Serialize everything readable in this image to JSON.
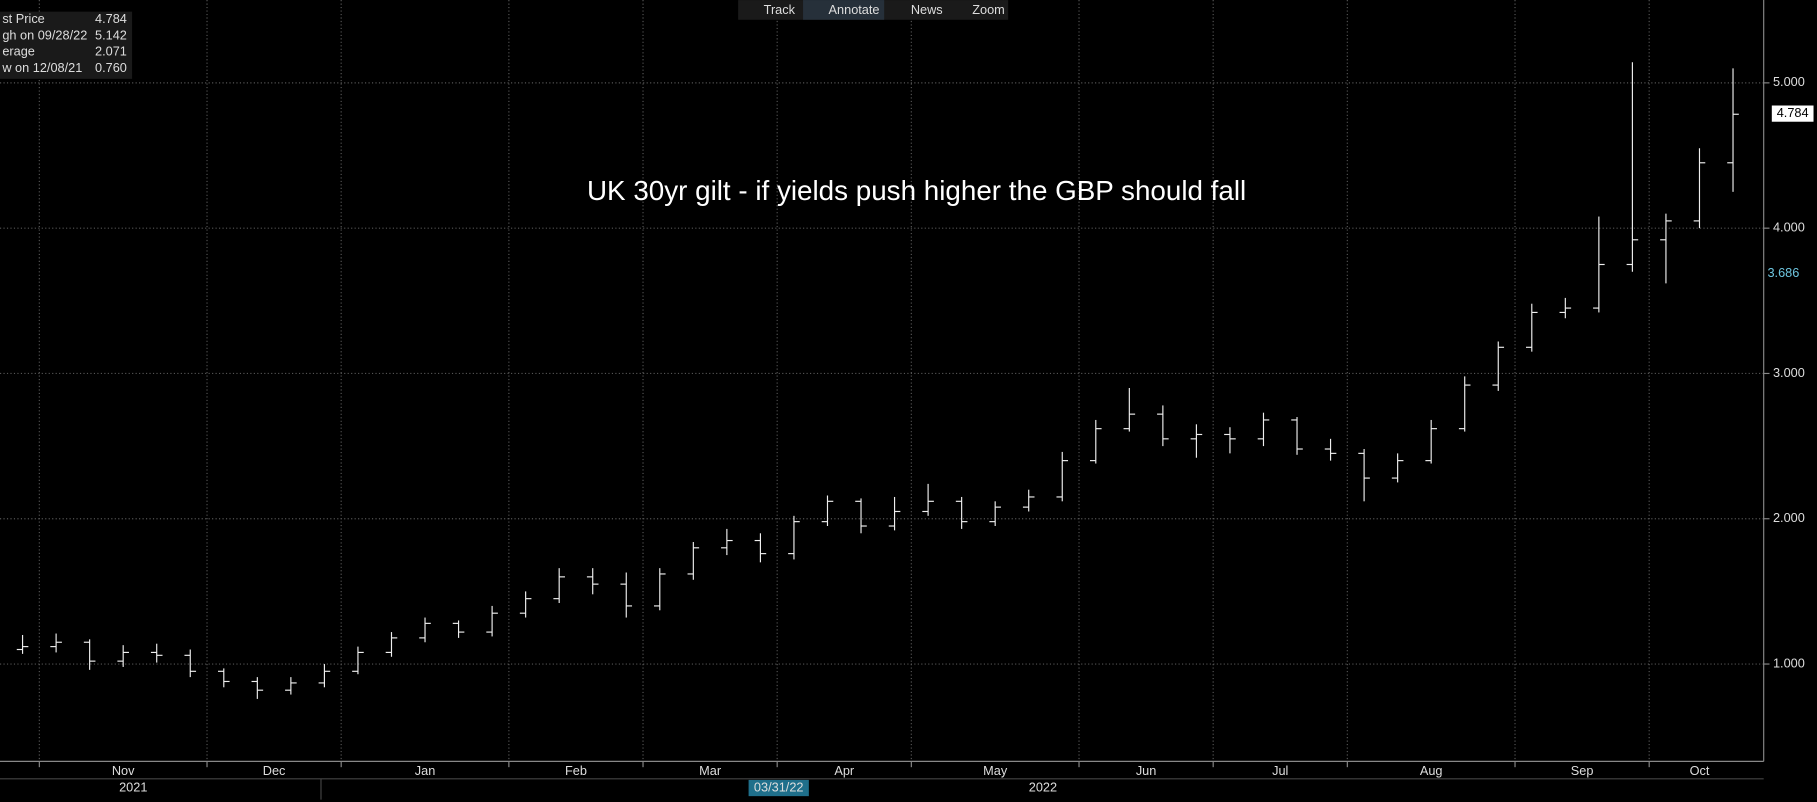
{
  "toolbar": [
    "Track",
    "Annotate",
    "News",
    "Zoom"
  ],
  "legend_box": [
    {
      "label": "st Price",
      "value": "4.784"
    },
    {
      "label": "gh on 09/28/22",
      "value": "5.142"
    },
    {
      "label": "erage",
      "value": "2.071"
    },
    {
      "label": "w on 12/08/21",
      "value": "0.760"
    }
  ],
  "price_markers": [
    "4.784",
    "3.686"
  ],
  "year_labels": [
    "2021",
    "2022"
  ],
  "cursor_date": "03/31/22",
  "chart_data": {
    "type": "ohlc",
    "annotation": "UK 30yr gilt  - if yields push higher the GBP should fall",
    "color": "#eeeeee",
    "categories": [
      null,
      "Nov",
      null,
      null,
      null,
      null,
      "Dec",
      null,
      null,
      null,
      "Jan",
      null,
      null,
      null,
      null,
      "Feb",
      null,
      null,
      null,
      "Mar",
      null,
      null,
      null,
      "Apr",
      null,
      null,
      null,
      "May",
      null,
      null,
      null,
      null,
      "Jun",
      null,
      null,
      null,
      "Jul",
      null,
      null,
      null,
      "Aug",
      null,
      null,
      null,
      null,
      "Sep",
      null,
      null,
      null,
      "Oct",
      null,
      null
    ],
    "open": [
      1.1,
      1.12,
      1.15,
      1.02,
      1.08,
      1.06,
      0.95,
      0.88,
      0.82,
      0.87,
      0.95,
      1.08,
      1.18,
      1.28,
      1.22,
      1.35,
      1.45,
      1.6,
      1.55,
      1.4,
      1.62,
      1.8,
      1.85,
      1.76,
      1.98,
      2.12,
      1.95,
      2.05,
      2.12,
      1.98,
      2.08,
      2.15,
      2.4,
      2.62,
      2.72,
      2.55,
      2.58,
      2.55,
      2.68,
      2.48,
      2.45,
      2.28,
      2.4,
      2.62,
      2.92,
      3.18,
      3.42,
      3.45,
      3.75,
      3.92,
      4.05,
      4.45
    ],
    "high": [
      1.2,
      1.21,
      1.17,
      1.13,
      1.14,
      1.1,
      0.97,
      0.91,
      0.91,
      1.0,
      1.12,
      1.22,
      1.32,
      1.3,
      1.4,
      1.5,
      1.66,
      1.66,
      1.63,
      1.66,
      1.84,
      1.93,
      1.9,
      2.02,
      2.16,
      2.14,
      2.15,
      2.24,
      2.15,
      2.12,
      2.2,
      2.46,
      2.68,
      2.9,
      2.78,
      2.65,
      2.63,
      2.73,
      2.7,
      2.55,
      2.48,
      2.45,
      2.68,
      2.98,
      3.22,
      3.48,
      3.52,
      4.08,
      5.142,
      4.1,
      4.55,
      5.1
    ],
    "low": [
      1.07,
      1.08,
      0.96,
      0.98,
      1.01,
      0.91,
      0.84,
      0.76,
      0.79,
      0.84,
      0.93,
      1.05,
      1.15,
      1.18,
      1.19,
      1.32,
      1.42,
      1.48,
      1.32,
      1.37,
      1.58,
      1.75,
      1.7,
      1.72,
      1.95,
      1.9,
      1.92,
      2.02,
      1.93,
      1.95,
      2.05,
      2.12,
      2.38,
      2.6,
      2.5,
      2.42,
      2.45,
      2.5,
      2.44,
      2.4,
      2.12,
      2.25,
      2.38,
      2.6,
      2.88,
      3.15,
      3.38,
      3.42,
      3.7,
      3.62,
      4.0,
      4.25
    ],
    "close": [
      1.12,
      1.15,
      1.02,
      1.08,
      1.06,
      0.95,
      0.88,
      0.82,
      0.87,
      0.95,
      1.08,
      1.18,
      1.28,
      1.22,
      1.35,
      1.45,
      1.6,
      1.55,
      1.4,
      1.62,
      1.8,
      1.85,
      1.76,
      1.98,
      2.12,
      1.95,
      2.05,
      2.12,
      1.98,
      2.08,
      2.15,
      2.4,
      2.62,
      2.72,
      2.55,
      2.58,
      2.55,
      2.68,
      2.48,
      2.45,
      2.28,
      2.4,
      2.62,
      2.92,
      3.18,
      3.42,
      3.45,
      3.75,
      3.92,
      4.05,
      4.45,
      4.784
    ],
    "ylim": [
      0.33,
      5.57
    ],
    "yticks": [
      {
        "value": 1,
        "label": "1.000"
      },
      {
        "value": 2,
        "label": "2.000"
      },
      {
        "value": 3,
        "label": "3.000"
      },
      {
        "value": 4,
        "label": "4.000"
      },
      {
        "value": 5,
        "label": "5.000"
      }
    ],
    "grid": true
  }
}
